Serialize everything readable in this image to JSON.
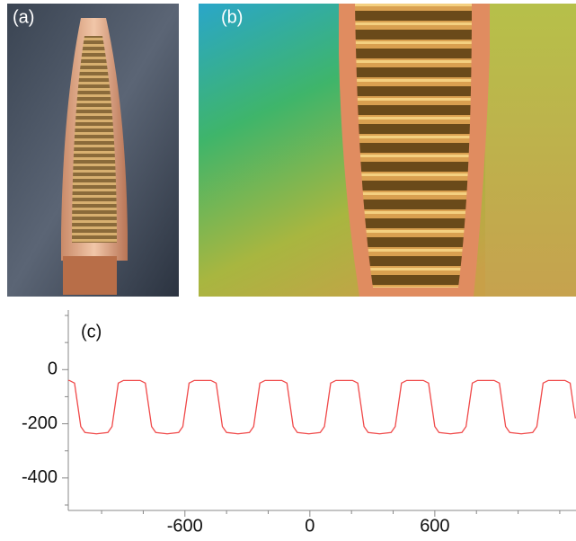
{
  "panels": [
    {
      "label": "(a)"
    },
    {
      "label": "(b)"
    }
  ],
  "chart_data": {
    "type": "line",
    "label": "(c)",
    "color": "#f04a4a",
    "x": [
      -1160,
      -1155,
      -1130,
      -1115,
      -1100,
      -1080,
      -1025,
      -970,
      -950,
      -935,
      -920,
      -895,
      -815,
      -790,
      -775,
      -760,
      -740,
      -685,
      -630,
      -610,
      -595,
      -580,
      -555,
      -475,
      -450,
      -435,
      -420,
      -400,
      -345,
      -290,
      -270,
      -255,
      -240,
      -215,
      -135,
      -110,
      -95,
      -80,
      -60,
      -5,
      50,
      70,
      85,
      100,
      125,
      205,
      230,
      245,
      260,
      280,
      335,
      390,
      410,
      425,
      440,
      465,
      545,
      570,
      585,
      600,
      620,
      675,
      730,
      750,
      765,
      780,
      805,
      885,
      910,
      925,
      940,
      960,
      1015,
      1070,
      1090,
      1105,
      1120,
      1145,
      1225,
      1250,
      1265,
      1275
    ],
    "values": [
      -40,
      -40,
      -50,
      -130,
      -210,
      -232,
      -237,
      -232,
      -210,
      -130,
      -50,
      -40,
      -40,
      -50,
      -130,
      -210,
      -232,
      -237,
      -232,
      -210,
      -130,
      -50,
      -40,
      -40,
      -50,
      -130,
      -210,
      -232,
      -237,
      -232,
      -210,
      -130,
      -50,
      -40,
      -40,
      -50,
      -130,
      -210,
      -232,
      -237,
      -232,
      -210,
      -130,
      -50,
      -40,
      -40,
      -50,
      -130,
      -210,
      -232,
      -237,
      -232,
      -210,
      -130,
      -50,
      -40,
      -40,
      -50,
      -130,
      -210,
      -232,
      -237,
      -232,
      -210,
      -130,
      -50,
      -40,
      -40,
      -50,
      -130,
      -210,
      -232,
      -237,
      -232,
      -210,
      -130,
      -50,
      -40,
      -40,
      -50,
      -130,
      -180
    ],
    "xlim": [
      -1160,
      1278
    ],
    "ylim": [
      -520,
      220
    ],
    "xticks": [
      -600,
      0,
      600
    ],
    "yticks": [
      0,
      -200,
      -400
    ],
    "xminorticks": [
      -1000,
      -800,
      -400,
      -200,
      200,
      400,
      800,
      1000,
      1200
    ],
    "yminorticks": [
      200,
      100,
      -100,
      -300,
      -500
    ]
  }
}
